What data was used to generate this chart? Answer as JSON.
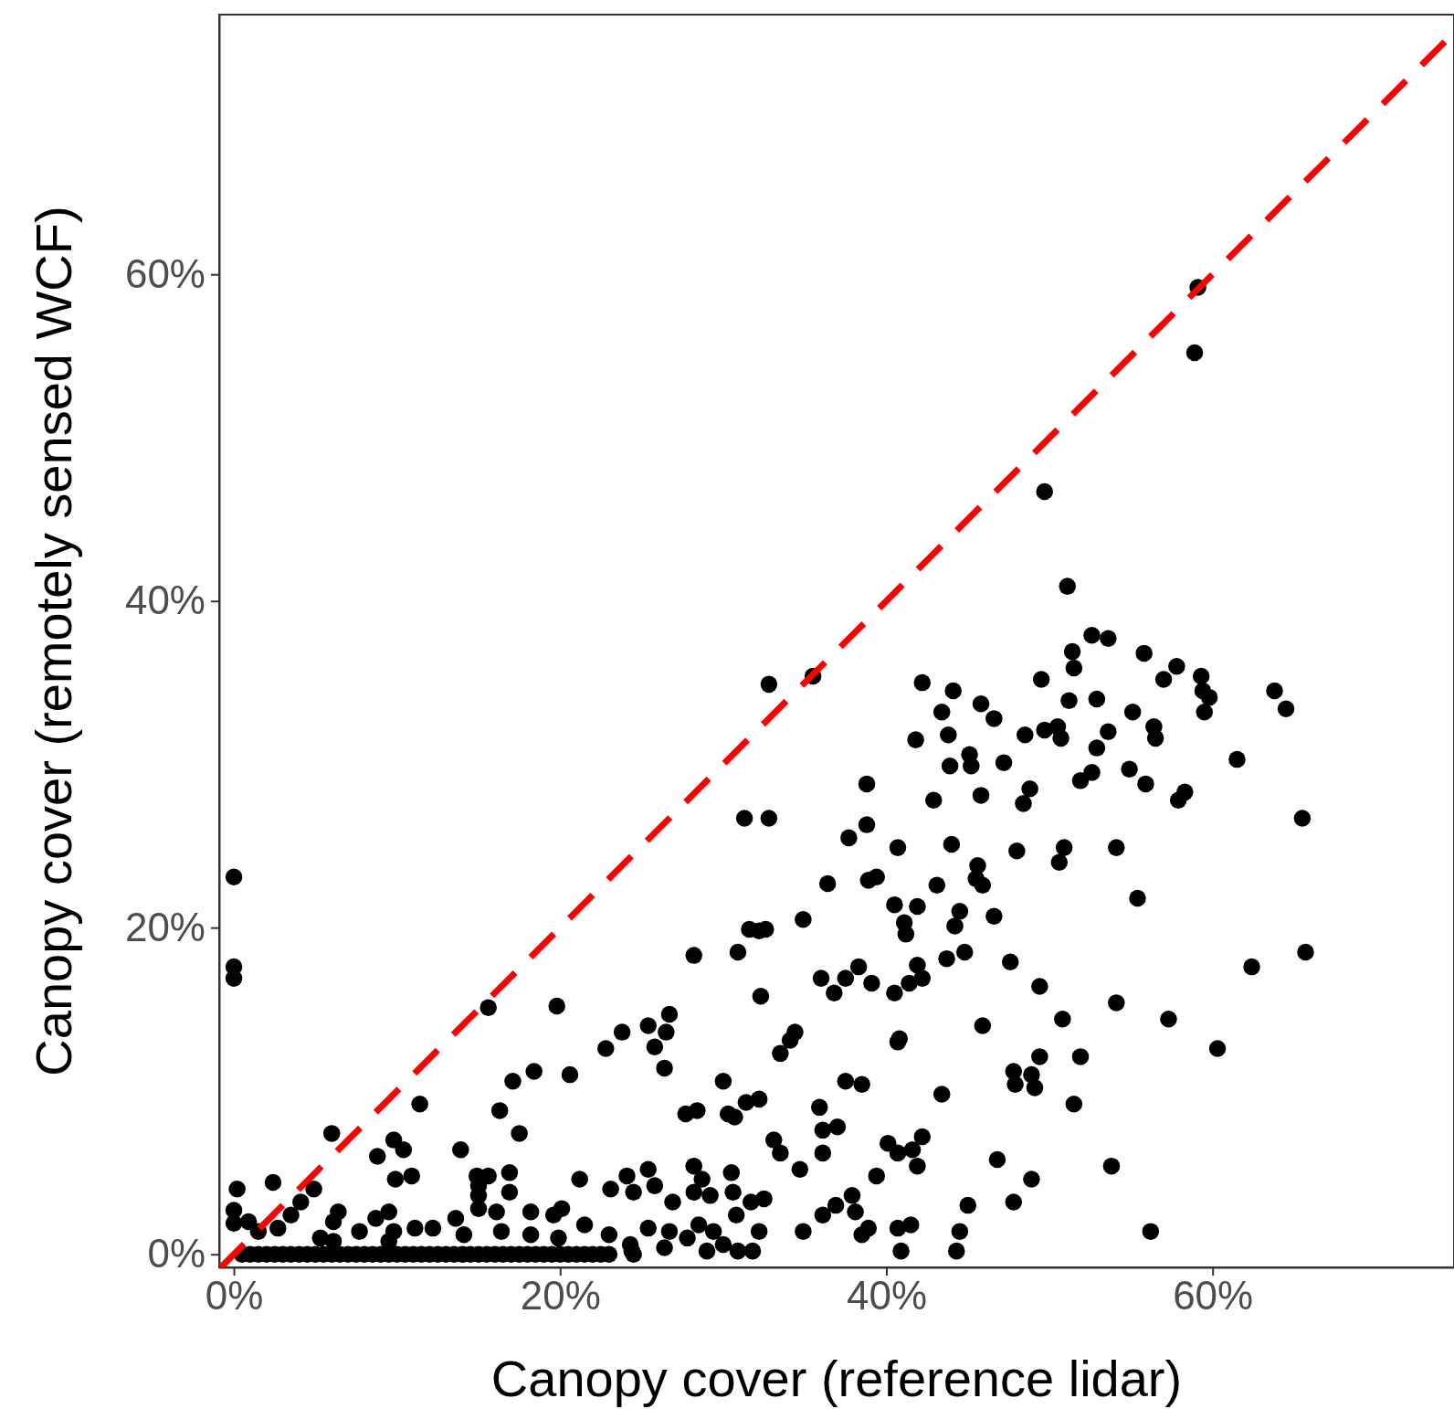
{
  "chart_data": {
    "type": "scatter",
    "xlabel": "Canopy cover (reference lidar)",
    "ylabel": "Canopy cover (remotely sensed WCF)",
    "xlim": [
      -0.9,
      74.8
    ],
    "ylim": [
      -0.8,
      75.9
    ],
    "xticks": [
      {
        "value": 0,
        "label": "0%"
      },
      {
        "value": 20,
        "label": "20%"
      },
      {
        "value": 40,
        "label": "40%"
      },
      {
        "value": 60,
        "label": "60%"
      }
    ],
    "yticks": [
      {
        "value": 0,
        "label": "0%"
      },
      {
        "value": 20,
        "label": "20%"
      },
      {
        "value": 40,
        "label": "40%"
      },
      {
        "value": 60,
        "label": "60%"
      }
    ],
    "series": [
      {
        "marker": "circle",
        "color": "#000000",
        "x": [
          0,
          0,
          0,
          0.2,
          0,
          0,
          59.1,
          58.9,
          49.7,
          51.1,
          35.5,
          32.8,
          52.6,
          53.6,
          51.4,
          51.5,
          55.8,
          57.8,
          59.3,
          57.0,
          49.5,
          42.2,
          44.1,
          59.4,
          59.8,
          63.8,
          64.5,
          45.8,
          43.4,
          46.6,
          51.2,
          52.9,
          55.1,
          56.4,
          56.5,
          59.5,
          53.6,
          50.5,
          49.7,
          50.7,
          48.5,
          43.8,
          41.8,
          52.9,
          45.1,
          45.2,
          43.9,
          47.2,
          61.5,
          54.9,
          52.6,
          51.9,
          55.9,
          38.8,
          48.8,
          45.8,
          58.3,
          57.9,
          42.9,
          48.4,
          31.3,
          32.8,
          65.5,
          38.8,
          37.7,
          44.0,
          50.9,
          40.7,
          48.0,
          54.1,
          50.6,
          45.6,
          45.5,
          39.4,
          38.9,
          36.4,
          43.1,
          45.9,
          55.4,
          40.5,
          41.9,
          44.5,
          46.6,
          34.9,
          41.1,
          44.2,
          31.6,
          32.6,
          32.2,
          41.2,
          44.8,
          65.7,
          30.9,
          28.2,
          43.7,
          47.6,
          41.9,
          62.4,
          42.2,
          36.0,
          37.5,
          38.3,
          39.1,
          41.4,
          49.4,
          36.8,
          40.5,
          32.3,
          54.1,
          15.6,
          19.8,
          26.7,
          50.8,
          57.3,
          25.4,
          45.9,
          26.5,
          23.8,
          34.4,
          34.1,
          40.8,
          40.7,
          25.8,
          22.8,
          60.3,
          33.5,
          49.4,
          51.9,
          26.4,
          18.4,
          20.6,
          47.8,
          48.9,
          17.1,
          30.0,
          37.5,
          38.5,
          47.9,
          49.1,
          11.4,
          51.5,
          43.4,
          32.2,
          16.3,
          35.9,
          31.4,
          30.3,
          28.4,
          27.7,
          30.7,
          6.0,
          17.5,
          36.1,
          37.0,
          9.8,
          33.1,
          42.2,
          40.1,
          10.4,
          13.9,
          8.8,
          33.5,
          36.1,
          40.7,
          41.6,
          46.8,
          25.4,
          34.7,
          28.2,
          41.9,
          53.8,
          9.9,
          10.9,
          16.9,
          21.2,
          14.9,
          15.6,
          28.7,
          30.5,
          39.4,
          48.9,
          2.4,
          15.0,
          16.9,
          23.1,
          24.1,
          25.8,
          24.5,
          4.9,
          15.0,
          28.2,
          29.2,
          30.6,
          37.9,
          4.1,
          26.9,
          32.5,
          31.7,
          36.9,
          45.0,
          47.8,
          38.1,
          36.1,
          30.8,
          18.2,
          20.1,
          6.4,
          9.5,
          3.5,
          15.0,
          16.1,
          13.6,
          8.7,
          19.6,
          0.9,
          6.1,
          2.7,
          11.1,
          12.2,
          21.5,
          25.4,
          28.5,
          41.5,
          40.7,
          38.9,
          34.9,
          44.5,
          56.2,
          32.2,
          29.4,
          26.7,
          23.0,
          16.4,
          7.7,
          1.5,
          38.5,
          27.8,
          24.3,
          26.4,
          30.0,
          40.9,
          44.3,
          30.9,
          31.8,
          24.4,
          29.0,
          19.9,
          18.2,
          14.1,
          9.8,
          9.5,
          5.3,
          6.1,
          0.5,
          1,
          1.5,
          2,
          2.5,
          3,
          3.5,
          4,
          4.5,
          5,
          5.5,
          6,
          6.5,
          7,
          7.5,
          8,
          8.5,
          9,
          9.5,
          10,
          10.5,
          11,
          11.5,
          12,
          12.5,
          13,
          13.5,
          14,
          14.5,
          15,
          15.5,
          16,
          16.5,
          17,
          17.5,
          18,
          18.5,
          19,
          19.5,
          20,
          20.5,
          21,
          21.5,
          22,
          22.5,
          23,
          24.5
        ],
        "values": [
          23.1,
          17.6,
          16.9,
          4.0,
          2.7,
          1.9,
          59.2,
          55.2,
          46.7,
          40.9,
          35.4,
          34.9,
          37.9,
          37.7,
          36.9,
          35.9,
          36.8,
          36.0,
          35.4,
          35.2,
          35.2,
          35.0,
          34.5,
          34.5,
          34.1,
          34.5,
          33.4,
          33.7,
          33.2,
          32.8,
          33.9,
          34.0,
          33.2,
          32.3,
          31.6,
          33.2,
          32.0,
          32.3,
          32.1,
          31.6,
          31.8,
          31.8,
          31.5,
          31.0,
          30.6,
          29.9,
          29.9,
          30.1,
          30.3,
          29.7,
          29.5,
          29.0,
          28.8,
          28.8,
          28.5,
          28.1,
          28.3,
          27.8,
          27.8,
          27.6,
          26.7,
          26.7,
          26.7,
          26.3,
          25.5,
          25.1,
          24.9,
          24.9,
          24.7,
          24.9,
          24.0,
          23.8,
          23.0,
          23.1,
          22.9,
          22.7,
          22.6,
          22.6,
          21.8,
          21.4,
          21.3,
          21.0,
          20.7,
          20.5,
          20.3,
          20.1,
          19.9,
          19.9,
          19.8,
          19.6,
          18.5,
          18.5,
          18.5,
          18.3,
          18.1,
          17.9,
          17.7,
          17.6,
          16.9,
          16.9,
          16.9,
          17.6,
          16.6,
          16.6,
          16.4,
          16.0,
          16.0,
          15.8,
          15.4,
          15.1,
          15.2,
          14.7,
          14.4,
          14.4,
          14.0,
          14.0,
          13.6,
          13.6,
          13.6,
          13.1,
          13.2,
          13.0,
          12.7,
          12.6,
          12.6,
          12.3,
          12.1,
          12.1,
          11.4,
          11.2,
          11.0,
          11.2,
          11.0,
          10.6,
          10.6,
          10.6,
          10.4,
          10.4,
          10.2,
          9.2,
          9.2,
          9.8,
          9.5,
          8.8,
          9.0,
          9.3,
          8.6,
          8.8,
          8.6,
          8.4,
          7.4,
          7.4,
          7.6,
          7.8,
          7.0,
          7.0,
          7.2,
          6.8,
          6.4,
          6.4,
          6.0,
          6.2,
          6.2,
          6.2,
          6.4,
          5.8,
          5.2,
          5.2,
          5.4,
          5.4,
          5.4,
          4.6,
          4.8,
          5.0,
          4.6,
          4.8,
          4.8,
          4.6,
          5.0,
          4.8,
          4.6,
          4.4,
          4.2,
          3.8,
          4.0,
          4.8,
          4.2,
          3.8,
          4.0,
          3.6,
          3.8,
          3.6,
          3.8,
          3.6,
          3.2,
          3.2,
          3.4,
          3.2,
          3.0,
          3.0,
          3.2,
          2.6,
          2.4,
          2.4,
          2.6,
          2.8,
          2.6,
          2.6,
          2.4,
          2.8,
          2.6,
          2.2,
          2.2,
          2.4,
          2.0,
          2.0,
          1.6,
          1.6,
          1.6,
          1.8,
          1.6,
          1.8,
          1.8,
          1.6,
          1.6,
          1.4,
          1.4,
          1.4,
          1.4,
          1.4,
          1.4,
          1.2,
          1.4,
          1.4,
          1.4,
          1.2,
          1.0,
          0.6,
          0.4,
          0.6,
          0.2,
          0.2,
          0.2,
          0.2,
          0.2,
          0.2,
          1.0,
          1.2,
          1.2,
          1.4,
          0.8,
          1.0,
          0.8,
          0,
          0,
          0,
          0,
          0,
          0,
          0,
          0,
          0,
          0,
          0,
          0,
          0,
          0,
          0,
          0,
          0,
          0,
          0,
          0,
          0,
          0,
          0,
          0,
          0,
          0,
          0,
          0,
          0,
          0,
          0,
          0,
          0,
          0,
          0,
          0,
          0,
          0,
          0,
          0,
          0,
          0,
          0,
          0,
          0,
          0,
          0
        ]
      },
      {
        "type": "line",
        "color": "#ff0000",
        "line_style": "dashed",
        "x": [
          -0.8,
          74.8
        ],
        "values": [
          -0.8,
          74.8
        ]
      }
    ]
  }
}
